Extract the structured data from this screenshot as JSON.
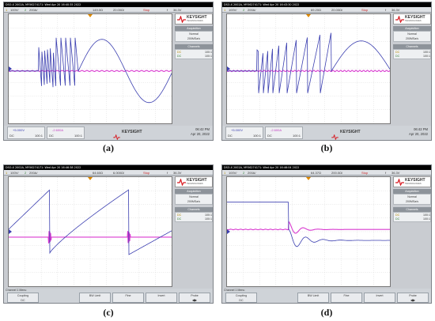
{
  "panels": [
    {
      "id": "a",
      "caption": "(a)",
      "titlebar": "DSO-X 2002A, MY56274171: Wed Apr 20 16:40:35 2022",
      "status": {
        "ch1": "1",
        "ch1_scale": "100V/",
        "ch2": "2",
        "ch2_scale": "200A/",
        "time_pos": "149.0Ω",
        "time_scale": "20.00Ω/",
        "mode": "Stop",
        "trig": "f",
        "trig_level": "36.3V"
      },
      "sidebar": {
        "brand": "KEYSIGHT",
        "brand_sub": "TECHNOLOGIES",
        "acq_head": "Acquisition",
        "acq_mode": "Normal",
        "acq_rate": "200MSa/s",
        "chan_head": "Channels",
        "ch1_coupling": "DC",
        "ch1_val": "100:1",
        "ch2_coupling": "DC",
        "ch2_val": "100:1"
      },
      "bottom": {
        "type": "meas",
        "m1": "+5.000V",
        "m2": "-2.600A",
        "dc1": "DC",
        "v1": "100:1",
        "dc2": "DC",
        "v2": "100:1",
        "time": "06:42 PM",
        "date": "Apr 20, 2022"
      }
    },
    {
      "id": "b",
      "caption": "(b)",
      "titlebar": "DSO-X 2002A, MY56274171: Wed Apr 20 16:43:30 2022",
      "status": {
        "ch1": "1",
        "ch1_scale": "100V/",
        "ch2": "2",
        "ch2_scale": "200A/",
        "time_pos": "69.20Ω",
        "time_scale": "20.00Ω/",
        "mode": "Stop",
        "trig": "f",
        "trig_level": "36.3V"
      },
      "sidebar": {
        "brand": "KEYSIGHT",
        "brand_sub": "TECHNOLOGIES",
        "acq_head": "Acquisition",
        "acq_mode": "Normal",
        "acq_rate": "200MSa/s",
        "chan_head": "Channels",
        "ch1_coupling": "DC",
        "ch1_val": "100:1",
        "ch2_coupling": "DC",
        "ch2_val": "100:1"
      },
      "bottom": {
        "type": "meas",
        "m1": "+5.000V",
        "m2": "-2.600A",
        "dc1": "DC",
        "v1": "100:1",
        "dc2": "DC",
        "v2": "100:1",
        "time": "06:42 PM",
        "date": "Apr 20, 2022"
      }
    },
    {
      "id": "c",
      "caption": "(c)",
      "titlebar": "DSO-X 2002A, MY56274171: Wed Apr 20 16:46:38 2022",
      "status": {
        "ch1": "1",
        "ch1_scale": "100V/",
        "ch2": "2",
        "ch2_scale": "200A/",
        "time_pos": "64.60Ω",
        "time_scale": "6.000Ω/",
        "mode": "Stop",
        "trig": "f",
        "trig_level": "36.3V"
      },
      "sidebar": {
        "brand": "KEYSIGHT",
        "brand_sub": "TECHNOLOGIES",
        "acq_head": "Acquisition",
        "acq_mode": "Normal",
        "acq_rate": "200MSa/s",
        "chan_head": "Channels",
        "ch1_coupling": "DC",
        "ch1_val": "100:1",
        "ch2_coupling": "DC",
        "ch2_val": "100:1"
      },
      "bottom": {
        "type": "menu",
        "menu_title": "Channel 1 Menu",
        "k1_label": "Coupling",
        "k1_value": "DC",
        "k2": "BW Limit",
        "k3": "Fine",
        "k4": "Invert",
        "k5": "Probe"
      }
    },
    {
      "id": "d",
      "caption": "(d)",
      "titlebar": "DSO-X 2002A, MY56274171: Wed Apr 20 16:46:04 2022",
      "status": {
        "ch1": "1",
        "ch1_scale": "100V/",
        "ch2": "2",
        "ch2_scale": "200A/",
        "time_pos": "64.37Ω",
        "time_scale": "200.0Ω/",
        "mode": "Stop",
        "trig": "f",
        "trig_level": "36.3V"
      },
      "sidebar": {
        "brand": "KEYSIGHT",
        "brand_sub": "TECHNOLOGIES",
        "acq_head": "Acquisition",
        "acq_mode": "Normal",
        "acq_rate": "200MSa/s",
        "chan_head": "Channels",
        "ch1_coupling": "DC",
        "ch1_val": "100:1",
        "ch2_coupling": "DC",
        "ch2_val": "100:1"
      },
      "bottom": {
        "type": "menu",
        "menu_title": "Channel 1 Menu",
        "k1_label": "Coupling",
        "k1_value": "DC",
        "k2": "BW Limit",
        "k3": "Fine",
        "k4": "Invert",
        "k5": "Probe"
      }
    }
  ],
  "colors": {
    "ch1_trace": "#3b3fb0",
    "ch2_trace": "#d93bd0",
    "keysight_red": "#d71920",
    "statusbar": "#dfe2e6",
    "screen_bg": "#ffffff"
  },
  "icons": {
    "logo": "keysight-wave-icon",
    "probe": "probe-arrow-icon",
    "coupling": "coupling-selector-icon"
  }
}
